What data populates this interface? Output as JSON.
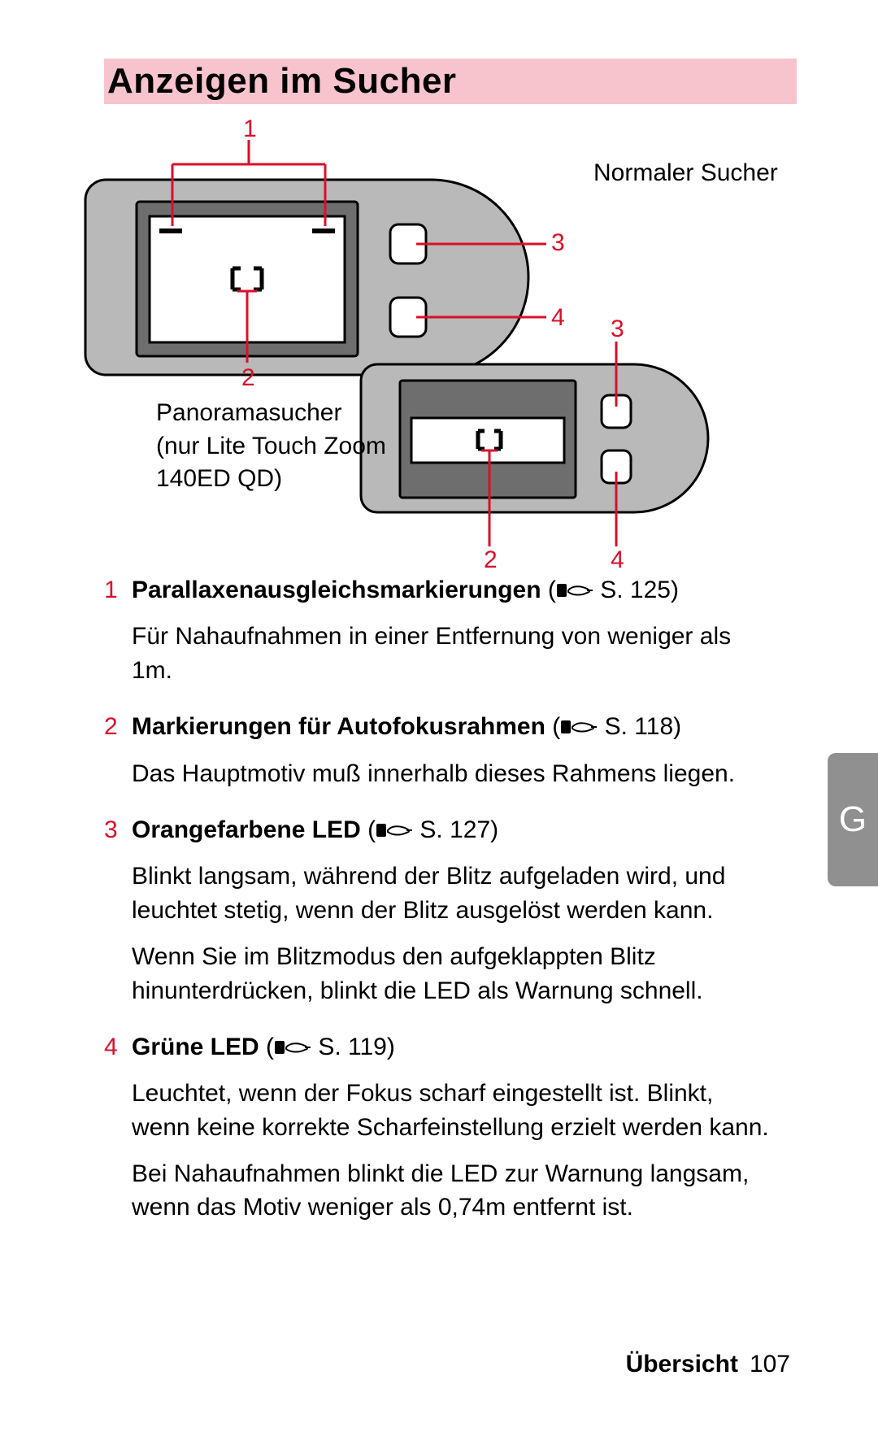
{
  "colors": {
    "title_bg": "#f7c4cd",
    "red": "#d9102a",
    "device_fill": "#b8b9b8",
    "device_stroke": "#000000",
    "inner_dark": "#6e6e6e",
    "side_tab": "#8f908f",
    "white": "#ffffff"
  },
  "title": "Anzeigen im Sucher",
  "labels": {
    "normal": "Normaler Sucher",
    "panorama": "Panoramasucher\n(nur Lite Touch Zoom\n140ED QD)"
  },
  "callouts": {
    "top": {
      "c1": "1",
      "c2": "2",
      "c3": "3",
      "c4": "4"
    },
    "bottom": {
      "c2": "2",
      "c3": "3",
      "c4": "4"
    }
  },
  "entries": [
    {
      "num": "1",
      "title": "Parallaxenausgleichsmarkierungen",
      "ref": "S. 125",
      "paras": [
        "Für Nahaufnahmen in einer Entfernung von weniger als 1m."
      ]
    },
    {
      "num": "2",
      "title": "Markierungen für Autofokusrahmen",
      "ref": "S. 118",
      "paras": [
        "Das Hauptmotiv muß innerhalb dieses Rahmens liegen."
      ]
    },
    {
      "num": "3",
      "title": "Orangefarbene LED",
      "ref": "S. 127",
      "paras": [
        "Blinkt langsam, während der Blitz aufgeladen wird, und leuchtet stetig, wenn der Blitz ausgelöst werden kann.",
        "Wenn Sie im Blitzmodus den aufgeklappten Blitz hinunterdrücken, blinkt die LED als Warnung schnell."
      ]
    },
    {
      "num": "4",
      "title": "Grüne LED",
      "ref": "S. 119",
      "paras": [
        "Leuchtet, wenn der Fokus scharf eingestellt ist. Blinkt, wenn keine korrekte Scharfeinstellung erzielt werden kann.",
        "Bei Nahaufnahmen blinkt die LED zur Warnung langsam, wenn das Motiv weniger als 0,74m entfernt ist."
      ]
    }
  ],
  "side_tab": "G",
  "footer": {
    "section": "Übersicht",
    "page": "107"
  }
}
